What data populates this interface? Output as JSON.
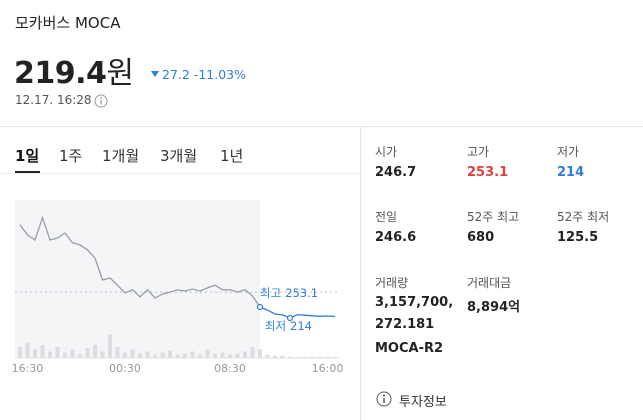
{
  "header": {
    "name": "모카버스 MOCA",
    "price": "219.4",
    "price_unit": "원",
    "change": "27.2",
    "change_rate": "-11.03%",
    "timestamp": "12.17. 16:28"
  },
  "tabs": [
    "1일",
    "1주",
    "1개월",
    "3개월",
    "1년"
  ],
  "selected_tab": 0,
  "chart_data": {
    "type": "line",
    "categories": [
      null,
      "16:30",
      null,
      null,
      null,
      null,
      null,
      null,
      null,
      null,
      null,
      null,
      null,
      null,
      "00:30",
      null,
      null,
      null,
      null,
      null,
      null,
      null,
      null,
      null,
      null,
      null,
      null,
      null,
      "08:30",
      null,
      null,
      null,
      null,
      null,
      null,
      null,
      null,
      null,
      null,
      null,
      null,
      "16:00",
      null
    ],
    "series": [
      {
        "color": "#9a9da3",
        "values": [
          545,
          509,
          491,
          570,
          491,
          498,
          516,
          481,
          474,
          456,
          427,
          349,
          356,
          331,
          303,
          314,
          289,
          314,
          285,
          299,
          306,
          314,
          310,
          317,
          310,
          321,
          331,
          314,
          314,
          306,
          314,
          292,
          253.1,
          null,
          null,
          null,
          null,
          null,
          null,
          null,
          null,
          null,
          null
        ]
      },
      {
        "color": "#2f7de1",
        "values": [
          null,
          null,
          null,
          null,
          null,
          null,
          null,
          null,
          null,
          null,
          null,
          null,
          null,
          null,
          null,
          null,
          null,
          null,
          null,
          null,
          null,
          null,
          null,
          null,
          null,
          null,
          null,
          null,
          null,
          null,
          null,
          null,
          253.1,
          242,
          228,
          225,
          214,
          226,
          224,
          222,
          220,
          221,
          219.4
        ]
      }
    ],
    "ylim": [
      72,
      633
    ],
    "reference_line": 306,
    "high_label": "최고",
    "high": 253.1,
    "low_label": "최저",
    "low": 214,
    "volume": [
      10,
      14,
      8,
      12,
      6,
      10,
      5,
      8,
      4,
      9,
      12,
      6,
      22,
      10,
      5,
      8,
      4,
      6,
      3,
      5,
      7,
      3,
      4,
      6,
      3,
      8,
      4,
      5,
      3,
      4,
      6,
      10,
      8,
      3,
      2,
      2,
      1,
      1,
      1,
      1,
      1,
      1,
      1
    ],
    "volume_color": "#dcdde0",
    "shade": "#f4f5f7"
  },
  "stats": [
    {
      "label": "시가",
      "value": "246.7"
    },
    {
      "label": "고가",
      "value": "253.1",
      "color": "#e0413d"
    },
    {
      "label": "저가",
      "value": "214",
      "color": "#2f7de1"
    },
    {
      "label": "전일",
      "value": "246.6"
    },
    {
      "label": "52주 최고",
      "value": "680"
    },
    {
      "label": "52주 최저",
      "value": "125.5"
    },
    {
      "label": "거래량",
      "value": "3,157,700,272.181"
    },
    {
      "label": "거래대금",
      "value": "8,894억"
    }
  ],
  "symbol": "MOCA-R2",
  "footer": "투자정보"
}
